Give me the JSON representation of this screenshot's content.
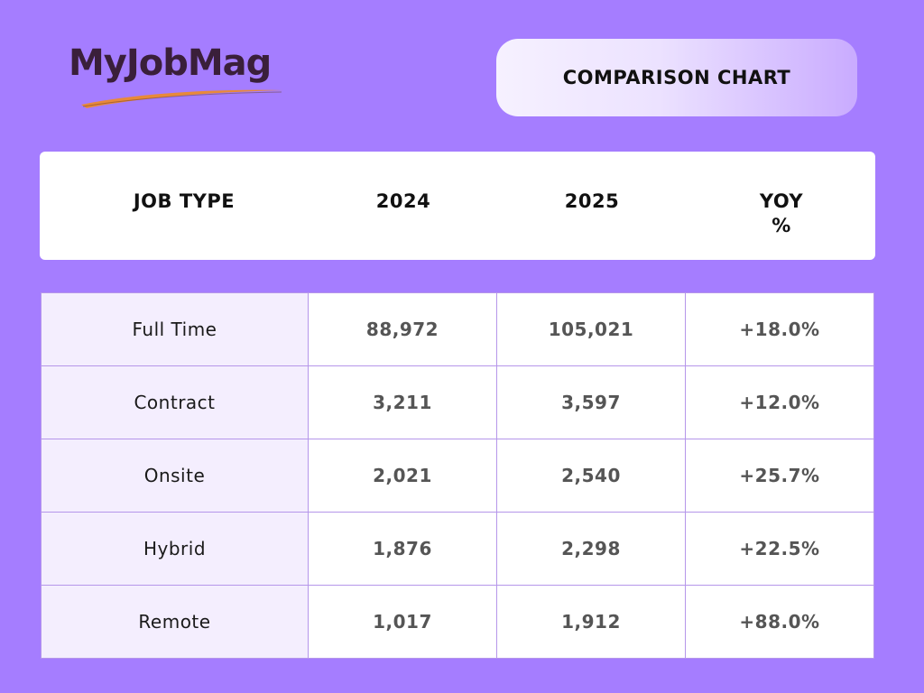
{
  "brand": {
    "logo_text": "MyJobMag",
    "text_color": "#3a1f3a",
    "swoosh_color": "#e8893a"
  },
  "title": "COMPARISON CHART",
  "colors": {
    "background": "#a57dff",
    "row_label_fill": "#f4eefe",
    "cell_border": "#b596ea"
  },
  "chart_data": {
    "type": "table",
    "title": "COMPARISON CHART",
    "columns": [
      "JOB TYPE",
      "2024",
      "2025",
      "YOY %"
    ],
    "rows": [
      {
        "job_type": "Full Time",
        "y2024": "88,972",
        "y2025": "105,021",
        "yoy": "+18.0%"
      },
      {
        "job_type": "Contract",
        "y2024": "3,211",
        "y2025": "3,597",
        "yoy": "+12.0%"
      },
      {
        "job_type": "Onsite",
        "y2024": "2,021",
        "y2025": "2,540",
        "yoy": "+25.7%"
      },
      {
        "job_type": "Hybrid",
        "y2024": "1,876",
        "y2025": "2,298",
        "yoy": "+22.5%"
      },
      {
        "job_type": "Remote",
        "y2024": "1,017",
        "y2025": "1,912",
        "yoy": "+88.0%"
      }
    ]
  }
}
